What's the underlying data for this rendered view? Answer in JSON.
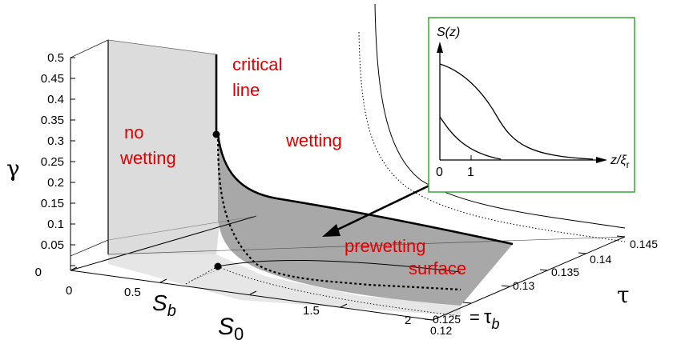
{
  "axes": {
    "gamma": {
      "symbol": "γ",
      "ticks": [
        "0.5",
        "0.45",
        "0.4",
        "0.35",
        "0.3",
        "0.25",
        "0.2",
        "0.15",
        "0.1",
        "0.05",
        "0"
      ]
    },
    "s0": {
      "symbol": "S",
      "subscript": "0",
      "ticks": [
        "0",
        "0.5",
        "1.5",
        "2"
      ],
      "sb_symbol": "S",
      "sb_subscript": "b"
    },
    "tau": {
      "symbol": "τ",
      "ticks": [
        "0.12",
        "0.125",
        "0.13",
        "0.135",
        "0.14",
        "0.145"
      ],
      "tau_b_equals": "=",
      "tau_b_symbol": "τ",
      "tau_b_subscript": "b"
    }
  },
  "regions": {
    "critical_line": [
      "critical",
      "line"
    ],
    "no_wetting": [
      "no",
      "wetting"
    ],
    "wetting": "wetting",
    "prewetting_surface": [
      "prewetting",
      "surface"
    ]
  },
  "inset": {
    "y_label": "S(z)",
    "x_label_prefix": "z/ξ",
    "x_label_sub": "r",
    "x_ticks": [
      "0",
      "1"
    ],
    "border_color": "#33aa33"
  },
  "colors": {
    "region_text": "#e00000",
    "no_wetting_plane": "#dcdcdc",
    "prewetting_surface": "#a8a8a8"
  }
}
